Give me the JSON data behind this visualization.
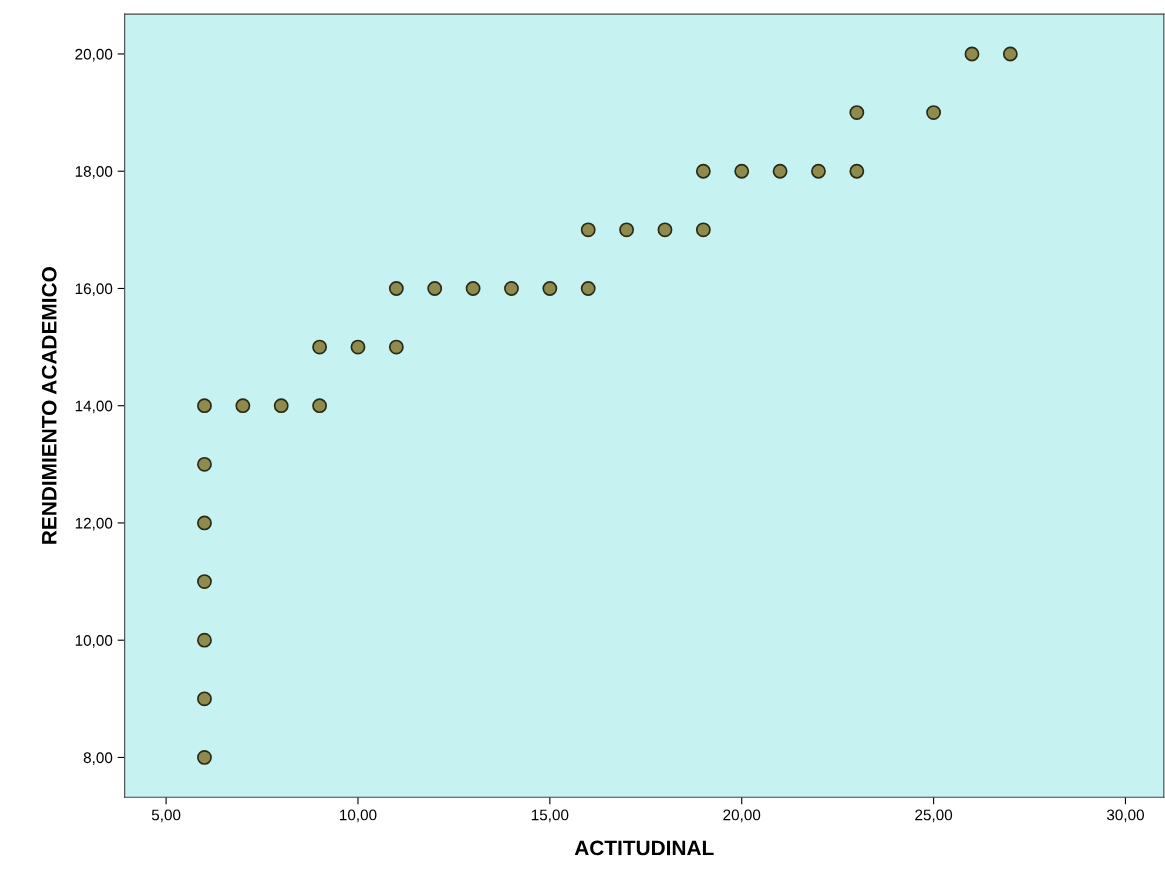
{
  "chart_data": {
    "type": "scatter",
    "xlabel": "ACTITUDINAL",
    "ylabel": "RENDIMIENTO ACADEMICO",
    "x": [
      6,
      6,
      6,
      6,
      6,
      6,
      6,
      7,
      8,
      9,
      9,
      10,
      11,
      11,
      12,
      13,
      14,
      15,
      16,
      16,
      17,
      18,
      19,
      19,
      20,
      21,
      22,
      23,
      23,
      25,
      26,
      27
    ],
    "series": [
      {
        "color": "#8f8a4e",
        "values": [
          8,
          9,
          10,
          11,
          12,
          13,
          14,
          14,
          14,
          14,
          15,
          15,
          15,
          16,
          16,
          16,
          16,
          16,
          16,
          17,
          17,
          17,
          17,
          18,
          18,
          18,
          18,
          18,
          19,
          19,
          20,
          20
        ]
      }
    ],
    "xlim": [
      3.92,
      31
    ],
    "ylim": [
      7.32,
      20.68
    ],
    "xticks": [
      {
        "value": 5,
        "label": "5,00"
      },
      {
        "value": 10,
        "label": "10,00"
      },
      {
        "value": 15,
        "label": "15,00"
      },
      {
        "value": 20,
        "label": "20,00"
      },
      {
        "value": 25,
        "label": "25,00"
      },
      {
        "value": 30,
        "label": "30,00"
      }
    ],
    "yticks": [
      {
        "value": 8,
        "label": "8,00"
      },
      {
        "value": 10,
        "label": "10,00"
      },
      {
        "value": 12,
        "label": "12,00"
      },
      {
        "value": 14,
        "label": "14,00"
      },
      {
        "value": 16,
        "label": "16,00"
      },
      {
        "value": 18,
        "label": "18,00"
      },
      {
        "value": 20,
        "label": "20,00"
      }
    ],
    "grid": false,
    "marker": "circle"
  }
}
